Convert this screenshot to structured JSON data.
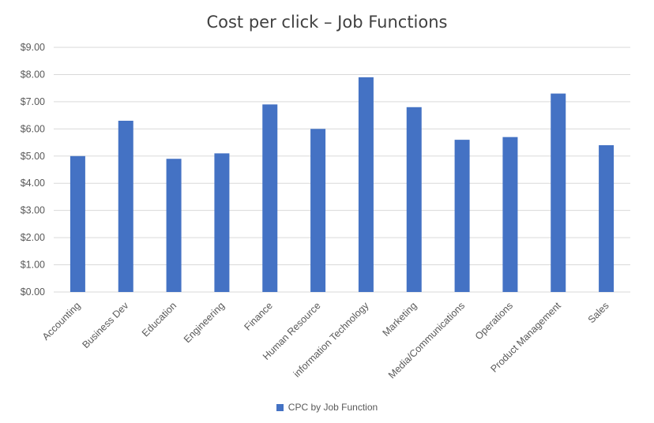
{
  "chart_data": {
    "type": "bar",
    "title": "Cost per click – Job Functions",
    "categories": [
      "Accounting",
      "Business Dev",
      "Education",
      "Engineering",
      "Finance",
      "Human Resource",
      "information Technology",
      "Marketing",
      "Media/Communications",
      "Operations",
      "Product Management",
      "Sales"
    ],
    "series": [
      {
        "name": "CPC by Job Function",
        "values": [
          5.0,
          6.3,
          4.9,
          5.1,
          6.9,
          6.0,
          7.9,
          6.8,
          5.6,
          5.7,
          7.3,
          5.4
        ]
      }
    ],
    "ylim": [
      0,
      9
    ],
    "yticks": [
      "$0.00",
      "$1.00",
      "$2.00",
      "$3.00",
      "$4.00",
      "$5.00",
      "$6.00",
      "$7.00",
      "$8.00",
      "$9.00"
    ],
    "grid": true,
    "legend": "bottom",
    "colors": {
      "bar": "#4472C4",
      "grid": "#D9D9D9"
    }
  }
}
